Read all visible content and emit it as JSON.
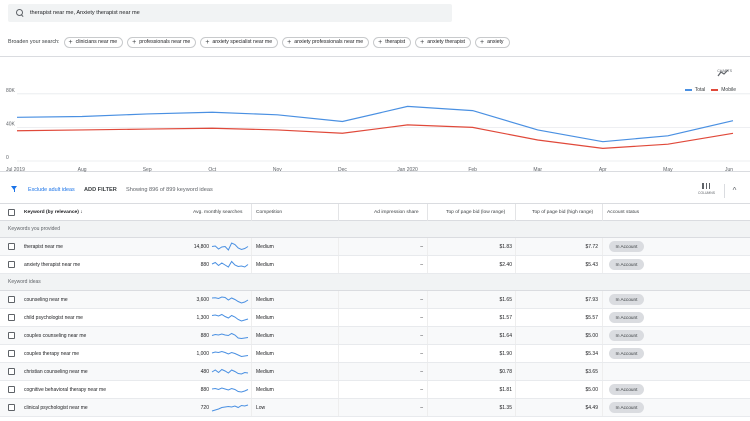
{
  "search": {
    "query": "therapist near me, Anxiety therapist near me"
  },
  "broaden": {
    "label": "Broaden your search:",
    "chips": [
      "clinicians near me",
      "professionals near me",
      "anxiety specialist near me",
      "anxiety professionals near me",
      "therapist",
      "anxiety therapist",
      "anxiety"
    ]
  },
  "chart_header": {
    "charts_label": "CHARTS"
  },
  "chart_data": {
    "type": "line",
    "x": [
      "Jul 2019",
      "Aug",
      "Sep",
      "Oct",
      "Nov",
      "Dec",
      "Jan 2020",
      "Feb",
      "Mar",
      "Apr",
      "May",
      "Jun"
    ],
    "y_ticks": [
      "80K",
      "40K",
      "0"
    ],
    "ylim": [
      0,
      100000
    ],
    "grid": true,
    "legend_position": "top-right",
    "series": [
      {
        "name": "Total",
        "color": "#4a90e2",
        "values": [
          52000,
          53000,
          56000,
          58000,
          55000,
          47000,
          65000,
          60000,
          37000,
          23000,
          30000,
          48000
        ]
      },
      {
        "name": "Mobile",
        "color": "#e0493a",
        "values": [
          36000,
          37000,
          38000,
          39000,
          37000,
          33000,
          43000,
          40000,
          25000,
          15000,
          20000,
          33000
        ]
      }
    ]
  },
  "filter_bar": {
    "exclude_label": "Exclude adult ideas",
    "add_filter_label": "ADD FILTER",
    "showing_text": "Showing 896 of 899 keyword ideas",
    "columns_label": "COLUMNS",
    "collapse_glyph": "^"
  },
  "table": {
    "headers": {
      "keyword": "Keyword (by relevance)",
      "searches": "Avg. monthly searches",
      "competition": "Competition",
      "impression": "Ad impression share",
      "bid_low": "Top of page bid (low range)",
      "bid_high": "Top of page bid (high range)",
      "status": "Account status"
    },
    "sort_arrow": "↓",
    "section_provided": "Keywords you provided",
    "section_ideas": "Keyword ideas",
    "provided": [
      {
        "keyword": "therapist near me",
        "searches": "14,800",
        "competition": "Medium",
        "impression": "–",
        "bid_low": "$1.83",
        "bid_high": "$7.72",
        "status": "In Account",
        "trend": [
          0.55,
          0.6,
          0.3,
          0.5,
          0.55,
          0.2,
          0.9,
          0.75,
          0.4,
          0.25,
          0.35,
          0.55
        ]
      },
      {
        "keyword": "anxiety therapist near me",
        "searches": "880",
        "competition": "Medium",
        "impression": "–",
        "bid_low": "$2.40",
        "bid_high": "$5.43",
        "status": "In Account",
        "trend": [
          0.6,
          0.75,
          0.45,
          0.7,
          0.5,
          0.3,
          0.85,
          0.5,
          0.35,
          0.4,
          0.3,
          0.55
        ]
      }
    ],
    "ideas": [
      {
        "keyword": "counseling near me",
        "searches": "3,600",
        "competition": "Medium",
        "impression": "–",
        "bid_low": "$1.65",
        "bid_high": "$7.93",
        "status": "In Account",
        "trend": [
          0.7,
          0.72,
          0.65,
          0.8,
          0.75,
          0.5,
          0.7,
          0.55,
          0.35,
          0.2,
          0.3,
          0.5
        ]
      },
      {
        "keyword": "child psychologist near me",
        "searches": "1,300",
        "competition": "Medium",
        "impression": "–",
        "bid_low": "$1.57",
        "bid_high": "$5.57",
        "status": "In Account",
        "trend": [
          0.75,
          0.8,
          0.7,
          0.85,
          0.65,
          0.5,
          0.75,
          0.6,
          0.35,
          0.2,
          0.3,
          0.4
        ]
      },
      {
        "keyword": "couples counseling near me",
        "searches": "880",
        "competition": "Medium",
        "impression": "–",
        "bid_low": "$1.64",
        "bid_high": "$5.00",
        "status": "In Account",
        "trend": [
          0.55,
          0.65,
          0.6,
          0.7,
          0.6,
          0.55,
          0.75,
          0.6,
          0.3,
          0.25,
          0.3,
          0.35
        ]
      },
      {
        "keyword": "couples therapy near me",
        "searches": "1,000",
        "competition": "Medium",
        "impression": "–",
        "bid_low": "$1.90",
        "bid_high": "$5.34",
        "status": "In Account",
        "trend": [
          0.6,
          0.7,
          0.65,
          0.75,
          0.65,
          0.5,
          0.65,
          0.55,
          0.4,
          0.25,
          0.3,
          0.35
        ]
      },
      {
        "keyword": "christian counseling near me",
        "searches": "480",
        "competition": "Medium",
        "impression": "–",
        "bid_low": "$0.78",
        "bid_high": "$3.65",
        "status": "",
        "trend": [
          0.5,
          0.7,
          0.45,
          0.75,
          0.6,
          0.4,
          0.7,
          0.55,
          0.35,
          0.3,
          0.45,
          0.4
        ]
      },
      {
        "keyword": "cognitive behavioral therapy near me",
        "searches": "880",
        "competition": "Medium",
        "impression": "–",
        "bid_low": "$1.81",
        "bid_high": "$5.00",
        "status": "In Account",
        "trend": [
          0.6,
          0.65,
          0.55,
          0.7,
          0.6,
          0.5,
          0.65,
          0.55,
          0.35,
          0.3,
          0.4,
          0.55
        ]
      },
      {
        "keyword": "clinical psychologist near me",
        "searches": "720",
        "competition": "Low",
        "impression": "–",
        "bid_low": "$1.35",
        "bid_high": "$4.49",
        "status": "In Account",
        "trend": [
          0.2,
          0.3,
          0.4,
          0.55,
          0.6,
          0.65,
          0.6,
          0.7,
          0.55,
          0.75,
          0.7,
          0.8
        ]
      }
    ]
  }
}
